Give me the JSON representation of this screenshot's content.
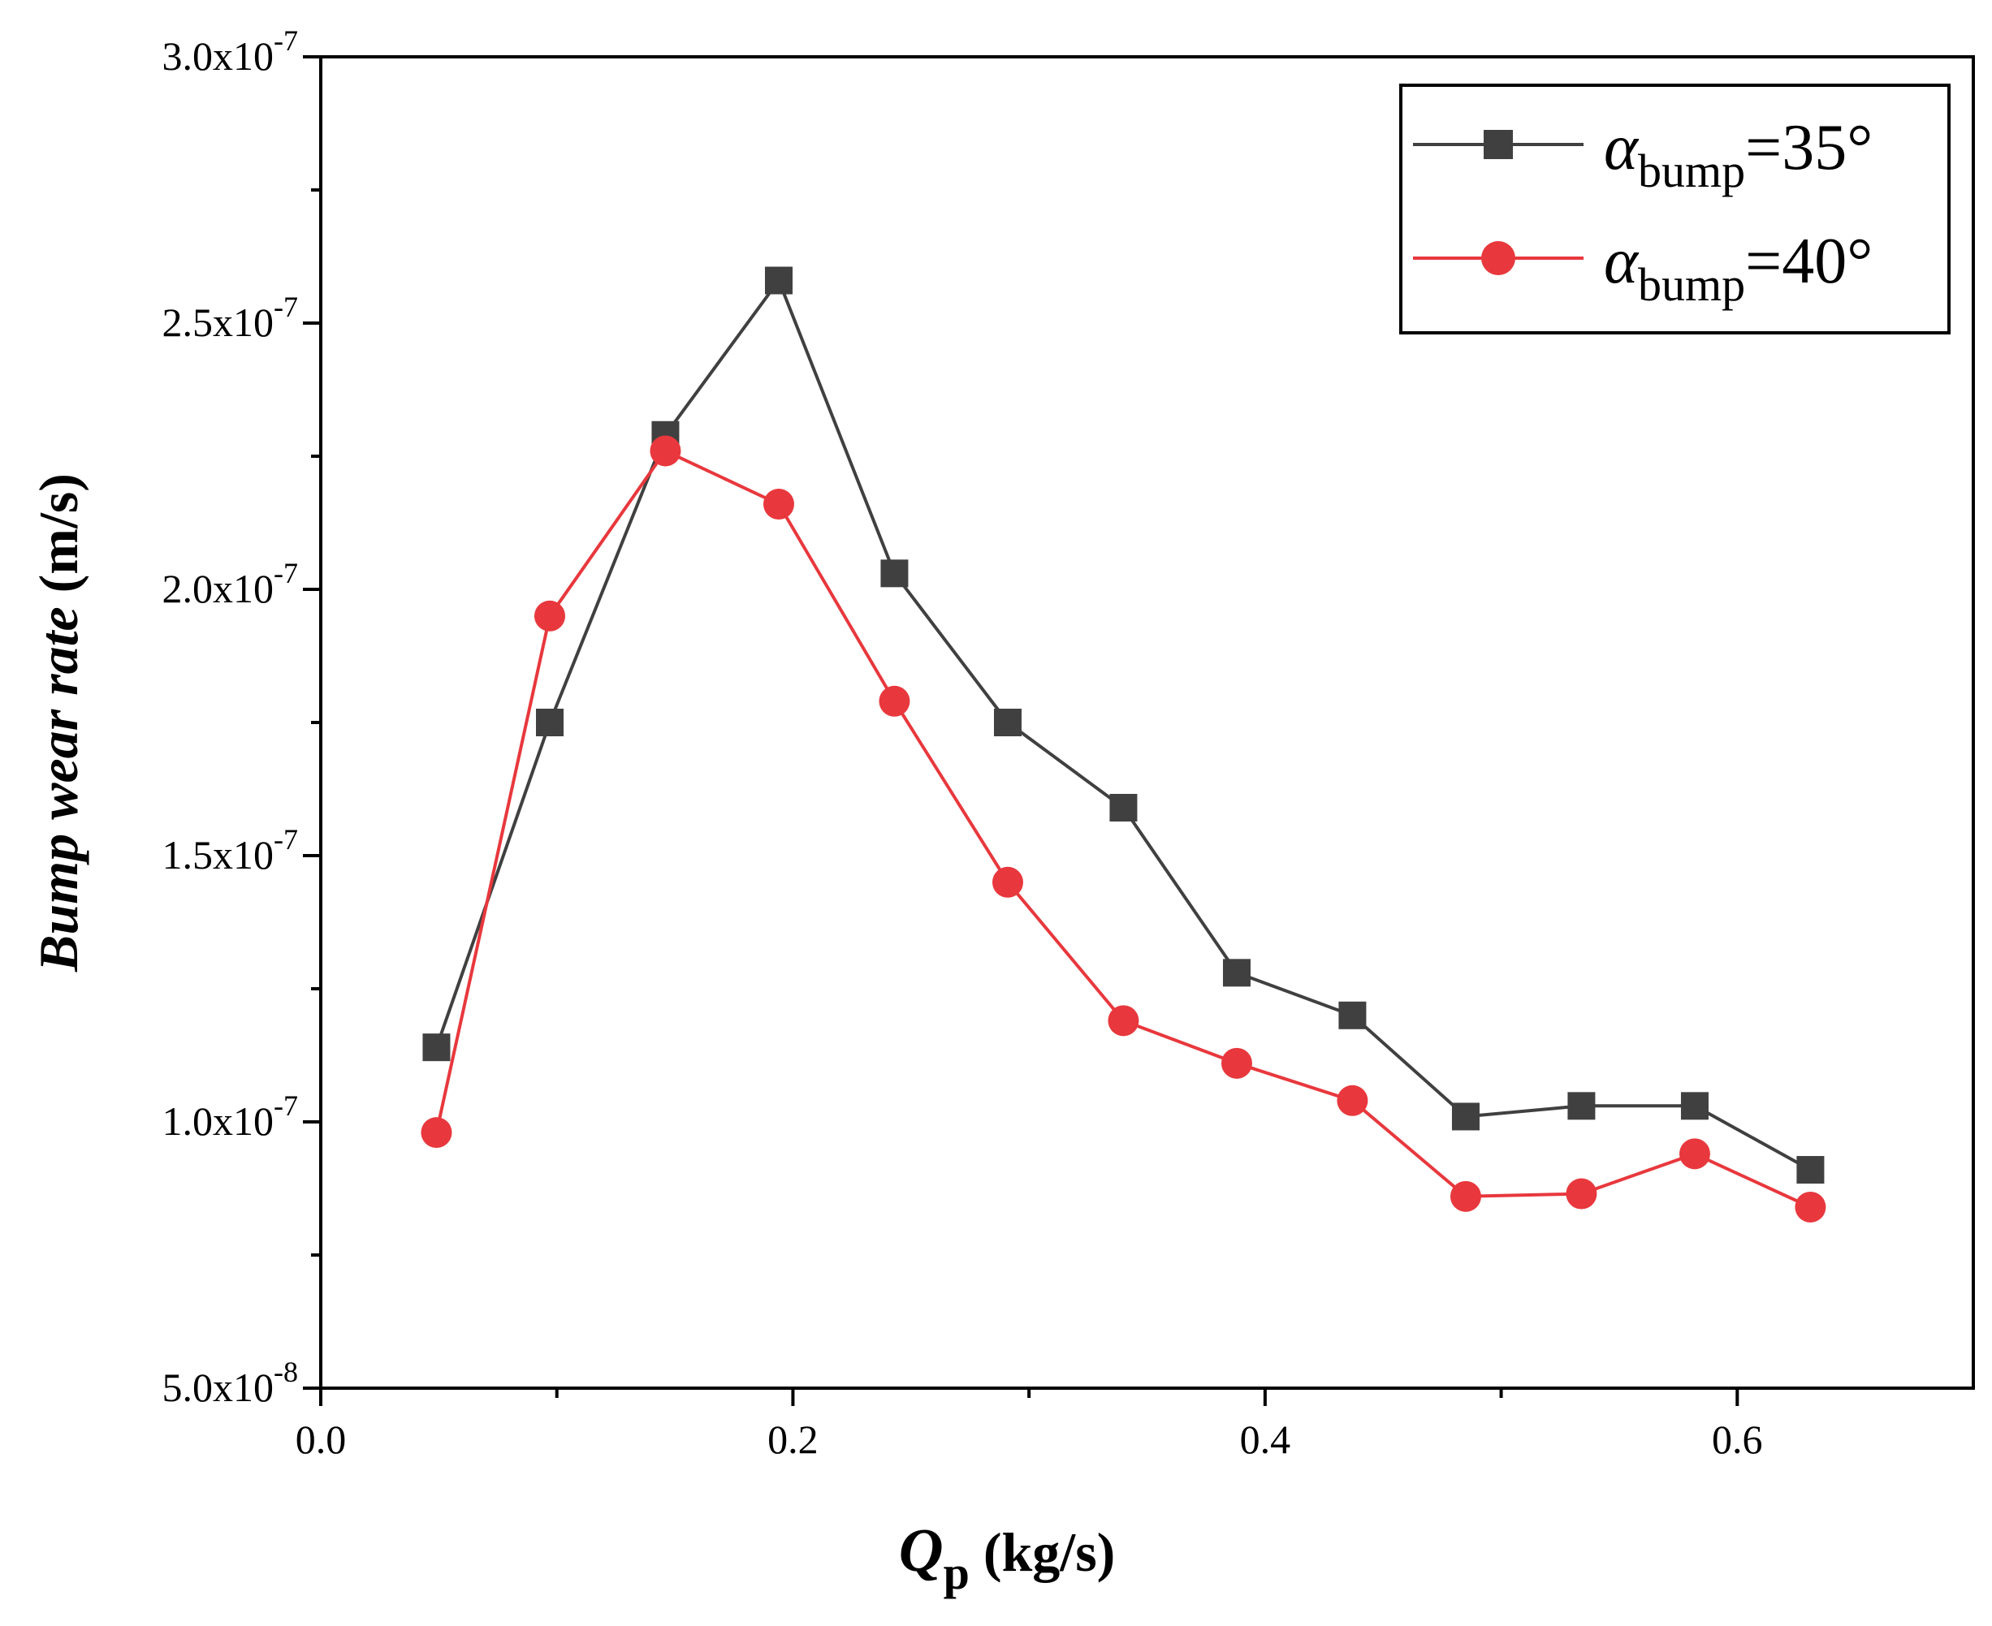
{
  "chart_data": {
    "type": "line",
    "title": "",
    "xlabel": {
      "symbol": "Q",
      "subscript": "p",
      "unit": " (kg/s)"
    },
    "ylabel": {
      "italic": "Bump wear rate",
      "unit": " (m/s)"
    },
    "xlim": [
      0.0,
      0.7
    ],
    "ylim": [
      5e-08,
      3e-07
    ],
    "x_ticks": [
      {
        "value": 0.0,
        "label": "0.0"
      },
      {
        "value": 0.2,
        "label": "0.2"
      },
      {
        "value": 0.4,
        "label": "0.4"
      },
      {
        "value": 0.6,
        "label": "0.6"
      }
    ],
    "y_ticks": [
      {
        "value": 5e-08,
        "mantissa": "5.0x10",
        "exponent": "-8"
      },
      {
        "value": 1e-07,
        "mantissa": "1.0x10",
        "exponent": "-7"
      },
      {
        "value": 1.5e-07,
        "mantissa": "1.5x10",
        "exponent": "-7"
      },
      {
        "value": 2e-07,
        "mantissa": "2.0x10",
        "exponent": "-7"
      },
      {
        "value": 2.5e-07,
        "mantissa": "2.5x10",
        "exponent": "-7"
      },
      {
        "value": 3e-07,
        "mantissa": "3.0x10",
        "exponent": "-7"
      }
    ],
    "grid": false,
    "legend_position": "top-right",
    "x": [
      0.049,
      0.097,
      0.146,
      0.194,
      0.243,
      0.291,
      0.34,
      0.388,
      0.437,
      0.485,
      0.534,
      0.582,
      0.631
    ],
    "series": [
      {
        "name": "α_bump=35°",
        "legend_symbol": "α",
        "legend_subscript": "bump",
        "legend_value": "=35°",
        "color": "#404040",
        "marker": "square",
        "values": [
          1.14e-07,
          1.75e-07,
          2.29e-07,
          2.58e-07,
          2.03e-07,
          1.75e-07,
          1.59e-07,
          1.28e-07,
          1.2e-07,
          1.01e-07,
          1.03e-07,
          1.03e-07,
          9.1e-08
        ]
      },
      {
        "name": "α_bump=40°",
        "legend_symbol": "α",
        "legend_subscript": "bump",
        "legend_value": "=40°",
        "color": "#e8383d",
        "marker": "circle",
        "values": [
          9.8e-08,
          1.95e-07,
          2.26e-07,
          2.16e-07,
          1.79e-07,
          1.45e-07,
          1.19e-07,
          1.11e-07,
          1.04e-07,
          8.6e-08,
          8.65e-08,
          9.4e-08,
          8.4e-08
        ]
      }
    ]
  }
}
